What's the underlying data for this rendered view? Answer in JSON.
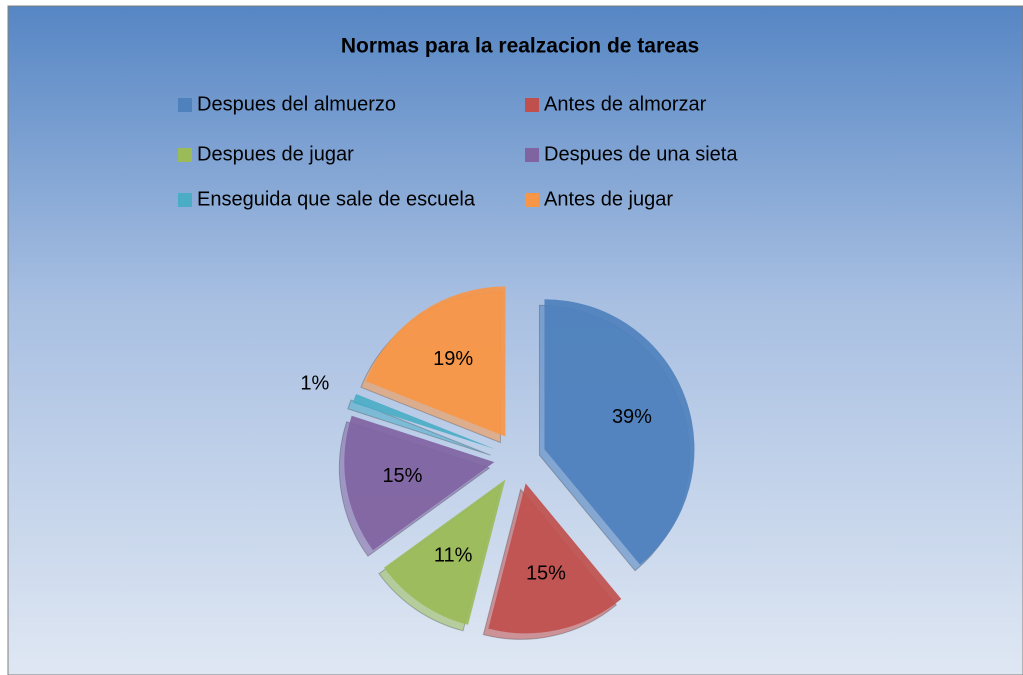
{
  "chart_data": {
    "type": "pie",
    "title": "Normas para la realzacion de tareas",
    "categories": [
      "Despues del almuerzo",
      "Antes de almorzar",
      "Despues de jugar",
      "Despues de una sieta",
      "Enseguida que sale de escuela",
      "Antes de jugar"
    ],
    "values": [
      39,
      15,
      11,
      15,
      1,
      19
    ],
    "value_labels": [
      "39%",
      "15%",
      "11%",
      "15%",
      "1%",
      "19%"
    ],
    "colors": [
      "#4f81bd",
      "#c0504d",
      "#9bbb59",
      "#8064a2",
      "#4bacc6",
      "#f79646"
    ],
    "legend": "top"
  }
}
